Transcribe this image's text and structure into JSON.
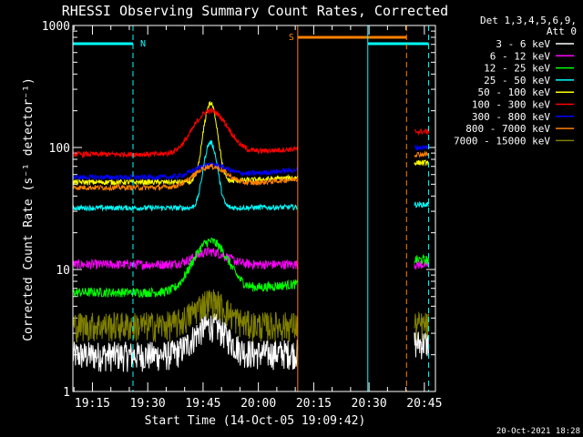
{
  "chart_data": {
    "type": "line",
    "title": "RHESSI Observing Summary Count Rates, Corrected",
    "xlabel": "Start Time (14-Oct-05 19:09:42)",
    "ylabel": "Corrected Count Rate (s⁻¹ detector⁻¹)",
    "yscale": "log",
    "ylim": [
      1,
      1000
    ],
    "xlim": [
      "19:09:42",
      "20:48:00"
    ],
    "x_ticks": [
      "19:15",
      "19:30",
      "19:45",
      "20:00",
      "20:15",
      "20:30",
      "20:45"
    ],
    "y_ticks": [
      "1",
      "10",
      "100",
      "1000"
    ],
    "legend_header": [
      "Det 1,3,4,5,6,9,",
      "Att 0"
    ],
    "legend_position": "right",
    "footer": "20-Oct-2021 18:28",
    "flags": [
      {
        "label": "N",
        "color": "#00ffff",
        "start": "19:09:42",
        "end": "19:26:00",
        "level": 0.7
      },
      {
        "label": "S",
        "color": "#ff8000",
        "start": "20:10:40",
        "end": "20:40:10",
        "level": 0.74
      },
      {
        "label": "",
        "color": "#00ffff",
        "start": "20:29:40",
        "end": "20:46:10",
        "level": 0.7
      }
    ],
    "markers": [
      {
        "time": "19:09:42",
        "color": "#00ffff",
        "style": "solid"
      },
      {
        "time": "19:26:00",
        "color": "#00ffff",
        "style": "dashed"
      },
      {
        "time": "20:10:40",
        "color": "#ff8000",
        "style": "solid"
      },
      {
        "time": "20:29:40",
        "color": "#00ffff",
        "style": "solid"
      },
      {
        "time": "20:40:10",
        "color": "#ff8000",
        "style": "dashed"
      },
      {
        "time": "20:46:10",
        "color": "#00ffff",
        "style": "dashed"
      }
    ],
    "data_gap": [
      "20:10:40",
      "20:42:00"
    ],
    "peak_time": "19:47:00",
    "series": [
      {
        "name": "3 - 6 keV",
        "color": "#ffffff",
        "pre": 2.0,
        "peak": 3.5,
        "post": 2.5
      },
      {
        "name": "6 - 12 keV",
        "color": "#ff00ff",
        "pre": 11,
        "peak": 14,
        "post": 11
      },
      {
        "name": "12 - 25 keV",
        "color": "#00ff00",
        "pre": 6.5,
        "peak": 17,
        "post": 12
      },
      {
        "name": "25 - 50 keV",
        "color": "#00ffff",
        "pre": 32,
        "peak": 110,
        "post": 34
      },
      {
        "name": "50 - 100 keV",
        "color": "#ffff00",
        "pre": 52,
        "peak": 230,
        "post": 75
      },
      {
        "name": "100 - 300 keV",
        "color": "#ff0000",
        "pre": 88,
        "peak": 200,
        "post": 135
      },
      {
        "name": "300 - 800 keV",
        "color": "#0000ff",
        "pre": 57,
        "peak": 72,
        "post": 100
      },
      {
        "name": "800 - 7000 keV",
        "color": "#ff8000",
        "pre": 47,
        "peak": 70,
        "post": 88
      },
      {
        "name": "7000 - 15000 keV",
        "color": "#808000",
        "pre": 3.5,
        "peak": 5.5,
        "post": 3.5
      }
    ]
  }
}
